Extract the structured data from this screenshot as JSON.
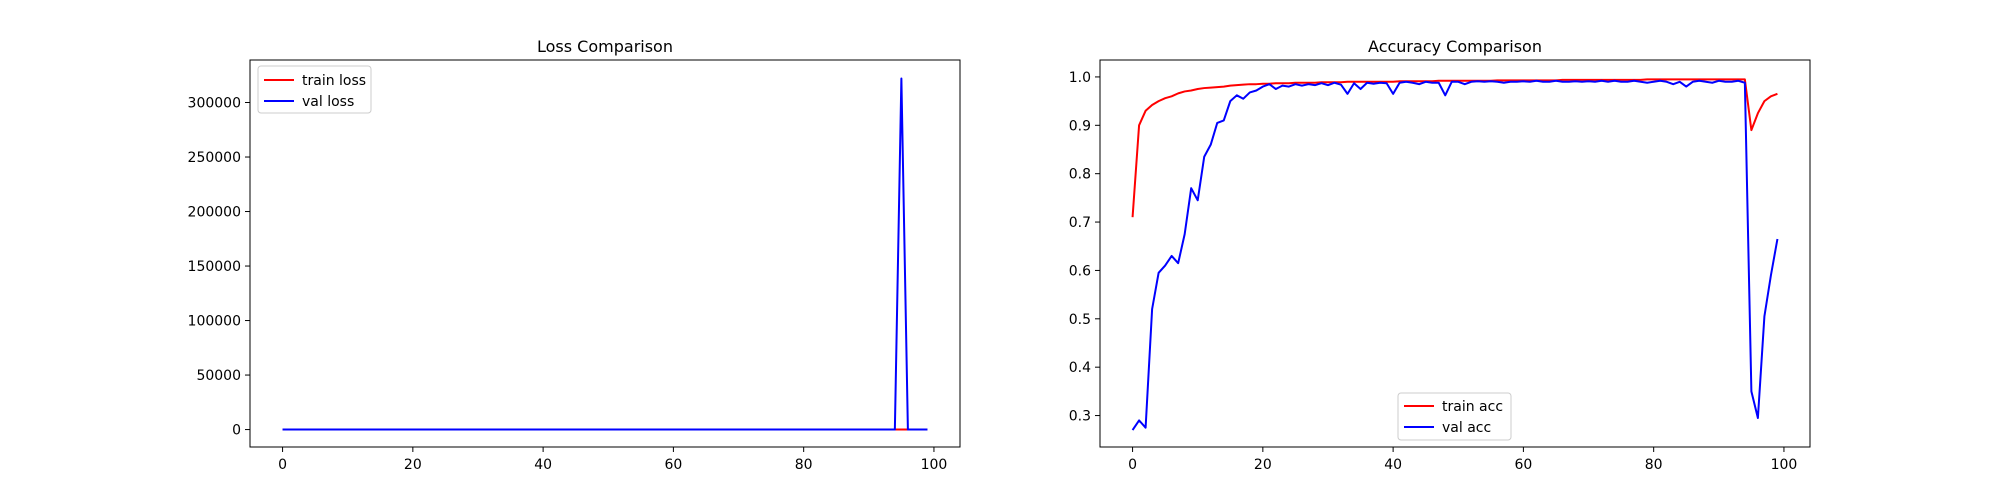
{
  "chart_data": [
    {
      "type": "line",
      "title": "Loss Comparison",
      "xlabel": "",
      "ylabel": "",
      "xlim": [
        -5,
        104
      ],
      "ylim": [
        -16000,
        339000
      ],
      "xticks": [
        0,
        20,
        40,
        60,
        80,
        100
      ],
      "yticks": [
        0,
        50000,
        100000,
        150000,
        200000,
        250000,
        300000
      ],
      "grid": false,
      "legend_position": "upper left",
      "series": [
        {
          "name": "train loss",
          "color": "#ff0000",
          "x": [
            0,
            1,
            2,
            3,
            4,
            5,
            6,
            7,
            8,
            9,
            10,
            11,
            12,
            13,
            14,
            15,
            16,
            17,
            18,
            19,
            20,
            21,
            22,
            23,
            24,
            25,
            26,
            27,
            28,
            29,
            30,
            31,
            32,
            33,
            34,
            35,
            36,
            37,
            38,
            39,
            40,
            41,
            42,
            43,
            44,
            45,
            46,
            47,
            48,
            49,
            50,
            51,
            52,
            53,
            54,
            55,
            56,
            57,
            58,
            59,
            60,
            61,
            62,
            63,
            64,
            65,
            66,
            67,
            68,
            69,
            70,
            71,
            72,
            73,
            74,
            75,
            76,
            77,
            78,
            79,
            80,
            81,
            82,
            83,
            84,
            85,
            86,
            87,
            88,
            89,
            90,
            91,
            92,
            93,
            94,
            95,
            96,
            97,
            98,
            99
          ],
          "y": [
            1,
            0.3,
            0.2,
            0.2,
            0.1,
            0.1,
            0.1,
            0.1,
            0.1,
            0.1,
            0.1,
            0.1,
            0.1,
            0.1,
            0.1,
            0.1,
            0.1,
            0.1,
            0.1,
            0.1,
            0.1,
            0.1,
            0.1,
            0.1,
            0.1,
            0.1,
            0.1,
            0.1,
            0.1,
            0.1,
            0.1,
            0.1,
            0.1,
            0.1,
            0.1,
            0.1,
            0.1,
            0.1,
            0.1,
            0.1,
            0.1,
            0.1,
            0.1,
            0.1,
            0.1,
            0.1,
            0.1,
            0.1,
            0.1,
            0.1,
            0.1,
            0.1,
            0.1,
            0.1,
            0.1,
            0.1,
            0.1,
            0.1,
            0.1,
            0.1,
            0.1,
            0.1,
            0.1,
            0.1,
            0.1,
            0.1,
            0.1,
            0.1,
            0.1,
            0.1,
            0.1,
            0.1,
            0.1,
            0.1,
            0.1,
            0.1,
            0.1,
            0.1,
            0.1,
            0.1,
            0.1,
            0.1,
            0.1,
            0.1,
            0.1,
            0.1,
            0.1,
            0.1,
            0.1,
            0.1,
            0.1,
            0.1,
            0.1,
            0.1,
            0.1,
            0.5,
            0.3,
            0.2,
            0.2,
            0.2
          ]
        },
        {
          "name": "val loss",
          "color": "#0000ff",
          "x": [
            0,
            1,
            2,
            3,
            4,
            5,
            6,
            7,
            8,
            9,
            10,
            11,
            12,
            13,
            14,
            15,
            16,
            17,
            18,
            19,
            20,
            21,
            22,
            23,
            24,
            25,
            26,
            27,
            28,
            29,
            30,
            31,
            32,
            33,
            34,
            35,
            36,
            37,
            38,
            39,
            40,
            41,
            42,
            43,
            44,
            45,
            46,
            47,
            48,
            49,
            50,
            51,
            52,
            53,
            54,
            55,
            56,
            57,
            58,
            59,
            60,
            61,
            62,
            63,
            64,
            65,
            66,
            67,
            68,
            69,
            70,
            71,
            72,
            73,
            74,
            75,
            76,
            77,
            78,
            79,
            80,
            81,
            82,
            83,
            84,
            85,
            86,
            87,
            88,
            89,
            90,
            91,
            92,
            93,
            94,
            95,
            96,
            97,
            98,
            99
          ],
          "y": [
            3,
            3,
            3,
            2,
            1,
            1,
            1,
            1,
            1,
            1,
            1,
            1,
            1,
            1,
            1,
            1,
            1,
            1,
            1,
            1,
            1,
            1,
            1,
            1,
            1,
            1,
            1,
            1,
            1,
            1,
            1,
            1,
            1,
            1,
            1,
            1,
            1,
            1,
            1,
            1,
            1,
            1,
            1,
            1,
            1,
            1,
            1,
            1,
            1,
            1,
            1,
            1,
            1,
            1,
            1,
            1,
            1,
            1,
            1,
            1,
            1,
            1,
            1,
            1,
            1,
            1,
            1,
            1,
            1,
            1,
            1,
            1,
            1,
            1,
            1,
            1,
            1,
            1,
            1,
            1,
            1,
            1,
            1,
            1,
            1,
            1,
            1,
            1,
            1,
            1,
            1,
            1,
            1,
            1,
            5,
            322000,
            10,
            5,
            3,
            3
          ]
        }
      ]
    },
    {
      "type": "line",
      "title": "Accuracy Comparison",
      "xlabel": "",
      "ylabel": "",
      "xlim": [
        -5,
        104
      ],
      "ylim": [
        0.235,
        1.035
      ],
      "xticks": [
        0,
        20,
        40,
        60,
        80,
        100
      ],
      "yticks": [
        0.3,
        0.4,
        0.5,
        0.6,
        0.7,
        0.8,
        0.9,
        1.0
      ],
      "grid": false,
      "legend_position": "lower center",
      "series": [
        {
          "name": "train acc",
          "color": "#ff0000",
          "x": [
            0,
            1,
            2,
            3,
            4,
            5,
            6,
            7,
            8,
            9,
            10,
            11,
            12,
            13,
            14,
            15,
            16,
            17,
            18,
            19,
            20,
            21,
            22,
            23,
            24,
            25,
            26,
            27,
            28,
            29,
            30,
            31,
            32,
            33,
            34,
            35,
            36,
            37,
            38,
            39,
            40,
            41,
            42,
            43,
            44,
            45,
            46,
            47,
            48,
            49,
            50,
            51,
            52,
            53,
            54,
            55,
            56,
            57,
            58,
            59,
            60,
            61,
            62,
            63,
            64,
            65,
            66,
            67,
            68,
            69,
            70,
            71,
            72,
            73,
            74,
            75,
            76,
            77,
            78,
            79,
            80,
            81,
            82,
            83,
            84,
            85,
            86,
            87,
            88,
            89,
            90,
            91,
            92,
            93,
            94,
            95,
            96,
            97,
            98,
            99
          ],
          "y": [
            0.71,
            0.9,
            0.93,
            0.942,
            0.95,
            0.956,
            0.96,
            0.966,
            0.97,
            0.972,
            0.975,
            0.977,
            0.978,
            0.979,
            0.98,
            0.982,
            0.983,
            0.984,
            0.985,
            0.985,
            0.986,
            0.986,
            0.987,
            0.987,
            0.987,
            0.988,
            0.988,
            0.988,
            0.988,
            0.989,
            0.989,
            0.989,
            0.989,
            0.99,
            0.99,
            0.99,
            0.99,
            0.99,
            0.99,
            0.99,
            0.99,
            0.991,
            0.991,
            0.991,
            0.991,
            0.991,
            0.991,
            0.992,
            0.992,
            0.992,
            0.992,
            0.992,
            0.992,
            0.992,
            0.992,
            0.992,
            0.993,
            0.993,
            0.993,
            0.993,
            0.993,
            0.993,
            0.993,
            0.993,
            0.993,
            0.993,
            0.994,
            0.994,
            0.994,
            0.994,
            0.994,
            0.994,
            0.994,
            0.994,
            0.994,
            0.994,
            0.994,
            0.994,
            0.994,
            0.995,
            0.995,
            0.995,
            0.995,
            0.995,
            0.995,
            0.995,
            0.995,
            0.995,
            0.995,
            0.995,
            0.995,
            0.995,
            0.995,
            0.995,
            0.995,
            0.89,
            0.925,
            0.95,
            0.96,
            0.965
          ]
        },
        {
          "name": "val acc",
          "color": "#0000ff",
          "x": [
            0,
            1,
            2,
            3,
            4,
            5,
            6,
            7,
            8,
            9,
            10,
            11,
            12,
            13,
            14,
            15,
            16,
            17,
            18,
            19,
            20,
            21,
            22,
            23,
            24,
            25,
            26,
            27,
            28,
            29,
            30,
            31,
            32,
            33,
            34,
            35,
            36,
            37,
            38,
            39,
            40,
            41,
            42,
            43,
            44,
            45,
            46,
            47,
            48,
            49,
            50,
            51,
            52,
            53,
            54,
            55,
            56,
            57,
            58,
            59,
            60,
            61,
            62,
            63,
            64,
            65,
            66,
            67,
            68,
            69,
            70,
            71,
            72,
            73,
            74,
            75,
            76,
            77,
            78,
            79,
            80,
            81,
            82,
            83,
            84,
            85,
            86,
            87,
            88,
            89,
            90,
            91,
            92,
            93,
            94,
            95,
            96,
            97,
            98,
            99
          ],
          "y": [
            0.27,
            0.29,
            0.275,
            0.52,
            0.595,
            0.61,
            0.63,
            0.615,
            0.675,
            0.77,
            0.745,
            0.835,
            0.86,
            0.905,
            0.91,
            0.95,
            0.962,
            0.955,
            0.968,
            0.972,
            0.98,
            0.985,
            0.975,
            0.982,
            0.98,
            0.985,
            0.982,
            0.985,
            0.983,
            0.987,
            0.983,
            0.988,
            0.984,
            0.965,
            0.987,
            0.975,
            0.988,
            0.986,
            0.988,
            0.987,
            0.965,
            0.988,
            0.99,
            0.988,
            0.985,
            0.99,
            0.988,
            0.988,
            0.962,
            0.99,
            0.99,
            0.985,
            0.99,
            0.991,
            0.99,
            0.991,
            0.99,
            0.988,
            0.99,
            0.99,
            0.991,
            0.99,
            0.992,
            0.99,
            0.99,
            0.992,
            0.99,
            0.99,
            0.991,
            0.99,
            0.991,
            0.99,
            0.992,
            0.99,
            0.992,
            0.99,
            0.99,
            0.992,
            0.99,
            0.988,
            0.99,
            0.992,
            0.99,
            0.985,
            0.99,
            0.98,
            0.99,
            0.992,
            0.99,
            0.988,
            0.992,
            0.99,
            0.99,
            0.992,
            0.988,
            0.35,
            0.295,
            0.505,
            0.59,
            0.665
          ]
        }
      ]
    }
  ]
}
